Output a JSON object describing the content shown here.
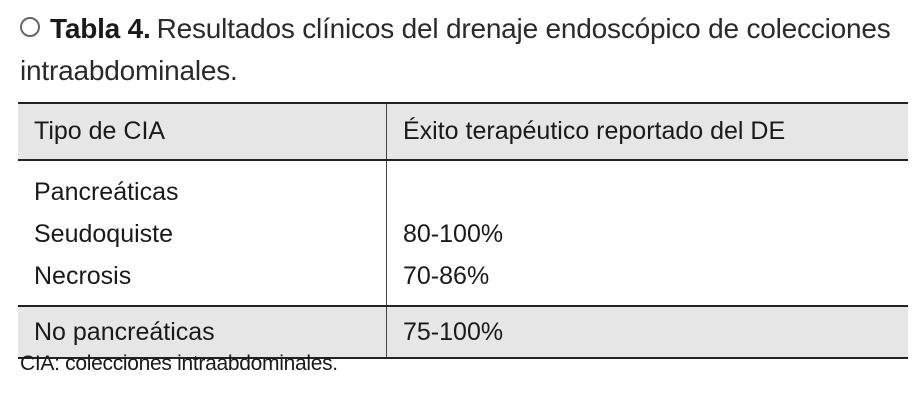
{
  "caption": {
    "label": "Tabla 4.",
    "text": "Resultados clínicos del drenaje endoscópico de colecciones intraabdominales."
  },
  "table": {
    "headers": [
      "Tipo de CIA",
      "Éxito terapéutico reportado del DE"
    ],
    "group": {
      "title": "Pancreáticas",
      "rows": [
        {
          "type": "Seudoquiste",
          "value": "80-100%"
        },
        {
          "type": "Necrosis",
          "value": "70-86%"
        }
      ]
    },
    "last_row": {
      "type": "No pancreáticas",
      "value": "75-100%"
    }
  },
  "footnote": "CIA: colecciones intraabdominales."
}
